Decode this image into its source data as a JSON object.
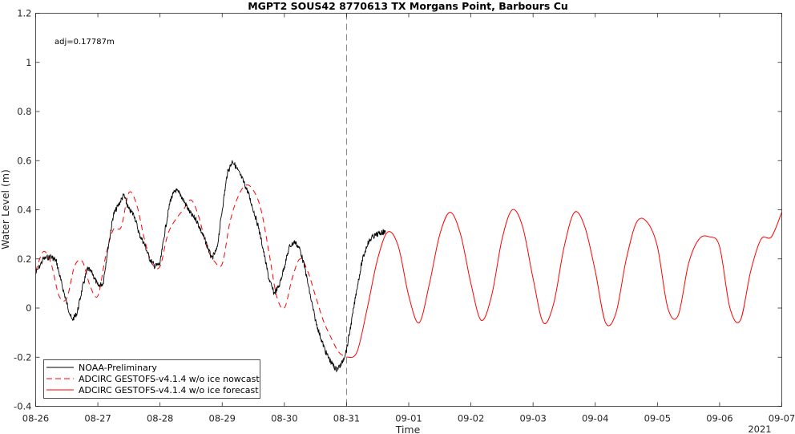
{
  "chart_data": {
    "type": "line",
    "title": "MGPT2 SOUS42 8770613 TX Morgans Point, Barbours Cu",
    "xlabel": "Time",
    "ylabel": "Water Level (m)",
    "x_tick_labels": [
      "08-26",
      "08-27",
      "08-28",
      "08-29",
      "08-30",
      "08-31",
      "09-01",
      "09-02",
      "09-03",
      "09-04",
      "09-05",
      "09-06",
      "09-07"
    ],
    "x_year_label": "2021",
    "xlim": [
      "2021-08-26 00:00",
      "2021-09-07 00:00"
    ],
    "ylim": [
      -0.4,
      1.2
    ],
    "y_ticks": [
      -0.4,
      -0.2,
      0,
      0.2,
      0.4,
      0.6,
      0.8,
      1,
      1.2
    ],
    "y_tick_labels": [
      "-0.4",
      "-0.2",
      "0",
      "0.2",
      "0.4",
      "0.6",
      "0.8",
      "1",
      "1.2"
    ],
    "annotation": "adj=0.17787m",
    "nowcast_forecast_boundary": "2021-08-31 00:00",
    "grid": false,
    "legend_position": "bottom-left",
    "colors": {
      "observed": "#000000",
      "nowcast": "#ff0000",
      "forecast": "#ff0000",
      "boundary": "#808080"
    },
    "series": [
      {
        "name": "NOAA-Preliminary",
        "style": "solid",
        "color": "#000000",
        "x": [
          "2021-08-26 00:00",
          "2021-08-26 03:00",
          "2021-08-26 06:00",
          "2021-08-26 08:00",
          "2021-08-26 10:00",
          "2021-08-26 12:00",
          "2021-08-26 14:00",
          "2021-08-26 16:00",
          "2021-08-26 18:00",
          "2021-08-26 20:00",
          "2021-08-26 22:00",
          "2021-08-27 00:00",
          "2021-08-27 02:00",
          "2021-08-27 04:00",
          "2021-08-27 06:00",
          "2021-08-27 08:00",
          "2021-08-27 10:00",
          "2021-08-27 12:00",
          "2021-08-27 14:00",
          "2021-08-27 16:00",
          "2021-08-27 18:00",
          "2021-08-27 20:00",
          "2021-08-27 22:00",
          "2021-08-28 00:00",
          "2021-08-28 02:00",
          "2021-08-28 04:00",
          "2021-08-28 06:00",
          "2021-08-28 08:00",
          "2021-08-28 10:00",
          "2021-08-28 12:00",
          "2021-08-28 14:00",
          "2021-08-28 16:00",
          "2021-08-28 18:00",
          "2021-08-28 20:00",
          "2021-08-28 22:00",
          "2021-08-29 00:00",
          "2021-08-29 02:00",
          "2021-08-29 04:00",
          "2021-08-29 06:00",
          "2021-08-29 08:00",
          "2021-08-29 10:00",
          "2021-08-29 12:00",
          "2021-08-29 14:00",
          "2021-08-29 16:00",
          "2021-08-29 18:00",
          "2021-08-29 20:00",
          "2021-08-29 22:00",
          "2021-08-30 00:00",
          "2021-08-30 02:00",
          "2021-08-30 04:00",
          "2021-08-30 06:00",
          "2021-08-30 08:00",
          "2021-08-30 10:00",
          "2021-08-30 12:00",
          "2021-08-30 14:00",
          "2021-08-30 16:00",
          "2021-08-30 18:00",
          "2021-08-30 20:00",
          "2021-08-30 22:00",
          "2021-08-31 00:00",
          "2021-08-31 02:00",
          "2021-08-31 04:00",
          "2021-08-31 06:00",
          "2021-08-31 08:00",
          "2021-08-31 10:00",
          "2021-08-31 12:00",
          "2021-08-31 14:00",
          "2021-08-31 15:00"
        ],
        "y": [
          0.14,
          0.2,
          0.21,
          0.19,
          0.1,
          0.02,
          -0.05,
          -0.02,
          0.08,
          0.16,
          0.14,
          0.09,
          0.1,
          0.25,
          0.38,
          0.42,
          0.46,
          0.4,
          0.38,
          0.3,
          0.26,
          0.2,
          0.17,
          0.18,
          0.32,
          0.44,
          0.48,
          0.46,
          0.42,
          0.38,
          0.36,
          0.31,
          0.26,
          0.2,
          0.24,
          0.4,
          0.55,
          0.6,
          0.56,
          0.52,
          0.47,
          0.4,
          0.33,
          0.23,
          0.12,
          0.06,
          0.09,
          0.17,
          0.25,
          0.27,
          0.24,
          0.16,
          0.05,
          -0.05,
          -0.12,
          -0.18,
          -0.22,
          -0.25,
          -0.23,
          -0.17,
          -0.05,
          0.08,
          0.19,
          0.26,
          0.29,
          0.3,
          0.31,
          0.31
        ]
      },
      {
        "name": "ADCIRC GESTOFS-v4.1.4 w/o ice nowcast",
        "style": "dashed",
        "color": "#ff0000",
        "x": [
          "2021-08-26 00:00",
          "2021-08-26 03:00",
          "2021-08-26 06:00",
          "2021-08-26 09:00",
          "2021-08-26 12:00",
          "2021-08-26 15:00",
          "2021-08-26 18:00",
          "2021-08-26 21:00",
          "2021-08-27 00:00",
          "2021-08-27 03:00",
          "2021-08-27 06:00",
          "2021-08-27 09:00",
          "2021-08-27 12:00",
          "2021-08-27 15:00",
          "2021-08-27 18:00",
          "2021-08-27 21:00",
          "2021-08-28 00:00",
          "2021-08-28 03:00",
          "2021-08-28 06:00",
          "2021-08-28 09:00",
          "2021-08-28 12:00",
          "2021-08-28 15:00",
          "2021-08-28 18:00",
          "2021-08-28 21:00",
          "2021-08-29 00:00",
          "2021-08-29 03:00",
          "2021-08-29 06:00",
          "2021-08-29 09:00",
          "2021-08-29 12:00",
          "2021-08-29 15:00",
          "2021-08-29 18:00",
          "2021-08-29 21:00",
          "2021-08-30 00:00",
          "2021-08-30 03:00",
          "2021-08-30 06:00",
          "2021-08-30 09:00",
          "2021-08-30 12:00",
          "2021-08-30 15:00",
          "2021-08-30 18:00",
          "2021-08-30 21:00",
          "2021-08-31 00:00"
        ],
        "y": [
          0.15,
          0.23,
          0.18,
          0.05,
          0.04,
          0.17,
          0.19,
          0.09,
          0.05,
          0.21,
          0.32,
          0.33,
          0.47,
          0.42,
          0.28,
          0.18,
          0.17,
          0.3,
          0.36,
          0.4,
          0.44,
          0.37,
          0.25,
          0.19,
          0.18,
          0.35,
          0.45,
          0.5,
          0.48,
          0.4,
          0.23,
          0.05,
          0.0,
          0.12,
          0.2,
          0.15,
          0.05,
          -0.05,
          -0.12,
          -0.18,
          -0.2
        ]
      },
      {
        "name": "ADCIRC GESTOFS-v4.1.4 w/o ice forecast",
        "style": "solid",
        "color": "#ff0000",
        "x": [
          "2021-08-31 00:00",
          "2021-08-31 04:00",
          "2021-08-31 08:00",
          "2021-08-31 12:00",
          "2021-08-31 16:00",
          "2021-08-31 20:00",
          "2021-09-01 00:00",
          "2021-09-01 04:00",
          "2021-09-01 08:00",
          "2021-09-01 12:00",
          "2021-09-01 16:00",
          "2021-09-01 20:00",
          "2021-09-02 00:00",
          "2021-09-02 04:00",
          "2021-09-02 08:00",
          "2021-09-02 12:00",
          "2021-09-02 16:00",
          "2021-09-02 20:00",
          "2021-09-03 00:00",
          "2021-09-03 04:00",
          "2021-09-03 08:00",
          "2021-09-03 12:00",
          "2021-09-03 16:00",
          "2021-09-03 20:00",
          "2021-09-04 00:00",
          "2021-09-04 04:00",
          "2021-09-04 08:00",
          "2021-09-04 12:00",
          "2021-09-04 16:00",
          "2021-09-04 20:00",
          "2021-09-05 00:00",
          "2021-09-05 04:00",
          "2021-09-05 08:00",
          "2021-09-05 12:00",
          "2021-09-05 16:00",
          "2021-09-05 20:00",
          "2021-09-06 00:00",
          "2021-09-06 04:00",
          "2021-09-06 08:00",
          "2021-09-06 12:00",
          "2021-09-06 16:00",
          "2021-09-06 20:00",
          "2021-09-07 00:00"
        ],
        "y": [
          -0.2,
          -0.18,
          0.0,
          0.2,
          0.31,
          0.25,
          0.05,
          -0.06,
          0.1,
          0.3,
          0.39,
          0.3,
          0.1,
          -0.05,
          0.05,
          0.28,
          0.4,
          0.33,
          0.12,
          -0.06,
          0.02,
          0.25,
          0.39,
          0.33,
          0.15,
          -0.06,
          -0.02,
          0.2,
          0.35,
          0.35,
          0.25,
          0.0,
          -0.03,
          0.18,
          0.28,
          0.29,
          0.25,
          0.0,
          -0.05,
          0.15,
          0.28,
          0.29,
          0.39
        ]
      }
    ]
  }
}
